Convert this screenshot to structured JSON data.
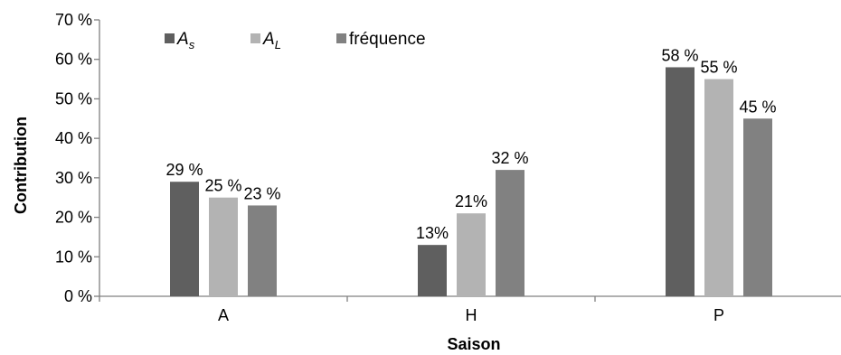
{
  "chart_data": {
    "type": "bar",
    "categories": [
      "A",
      "H",
      "P"
    ],
    "series": [
      {
        "name": "A_s",
        "legend_main": "A",
        "legend_sub": "s",
        "color": "#5f5f5f",
        "values": [
          29,
          13,
          58
        ],
        "labels": [
          "29 %",
          "13%",
          "58 %"
        ]
      },
      {
        "name": "A_L",
        "legend_main": "A",
        "legend_sub": "L",
        "color": "#b3b3b3",
        "values": [
          25,
          21,
          55
        ],
        "labels": [
          "25 %",
          "21%",
          "55 %"
        ]
      },
      {
        "name": "fréquence",
        "legend_main": "fréquence",
        "legend_sub": "",
        "color": "#818181",
        "values": [
          23,
          32,
          45
        ],
        "labels": [
          "23 %",
          "32 %",
          "45 %"
        ]
      }
    ],
    "yticks": [
      "0 %",
      "10 %",
      "20 %",
      "30 %",
      "40 %",
      "50 %",
      "60 %",
      "70 %"
    ],
    "ylim": [
      0,
      70
    ],
    "xlabel": "Saison",
    "ylabel": "Contribution",
    "grid": false,
    "legend_position": "top-left"
  }
}
